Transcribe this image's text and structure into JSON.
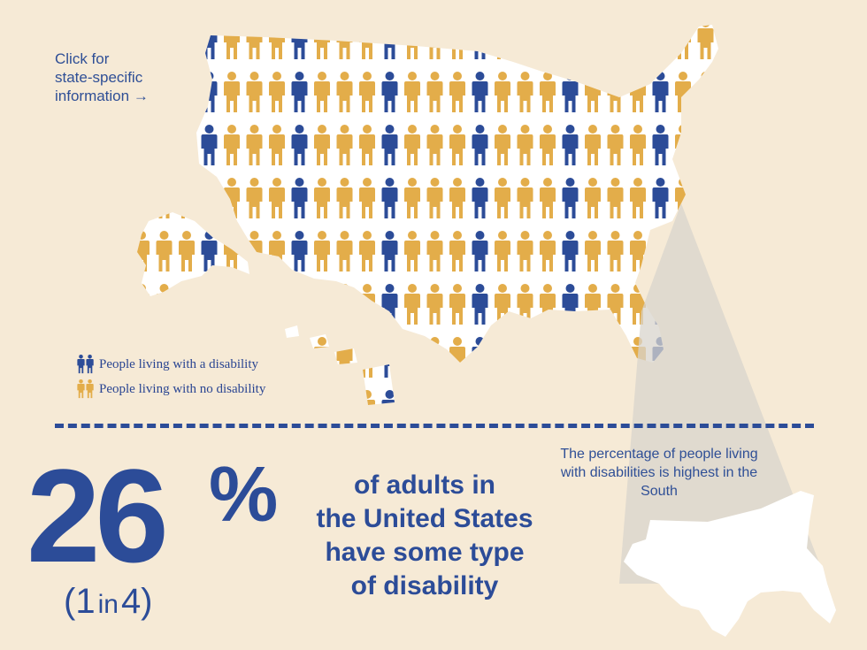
{
  "click_note": "Click for\nstate-specific\ninformation →",
  "legend": {
    "disability_label": "People living with a disability",
    "no_disability_label": "People living with no disability",
    "disability_color": "#2c4c98",
    "no_disability_color": "#e3ad4a"
  },
  "headline": {
    "percent": "26",
    "percent_sign": "%",
    "ratio_open": "(",
    "ratio_value": "1",
    "ratio_in": "in",
    "ratio_total": "4)",
    "statement_lines": [
      "of adults in",
      "the United States",
      "have some type",
      "of disability"
    ]
  },
  "south_note": "The percentage of people living with disabilities is highest in the South",
  "map_icons": {
    "pattern": "mixed figures of people; about 1 in 4 figures is blue"
  }
}
